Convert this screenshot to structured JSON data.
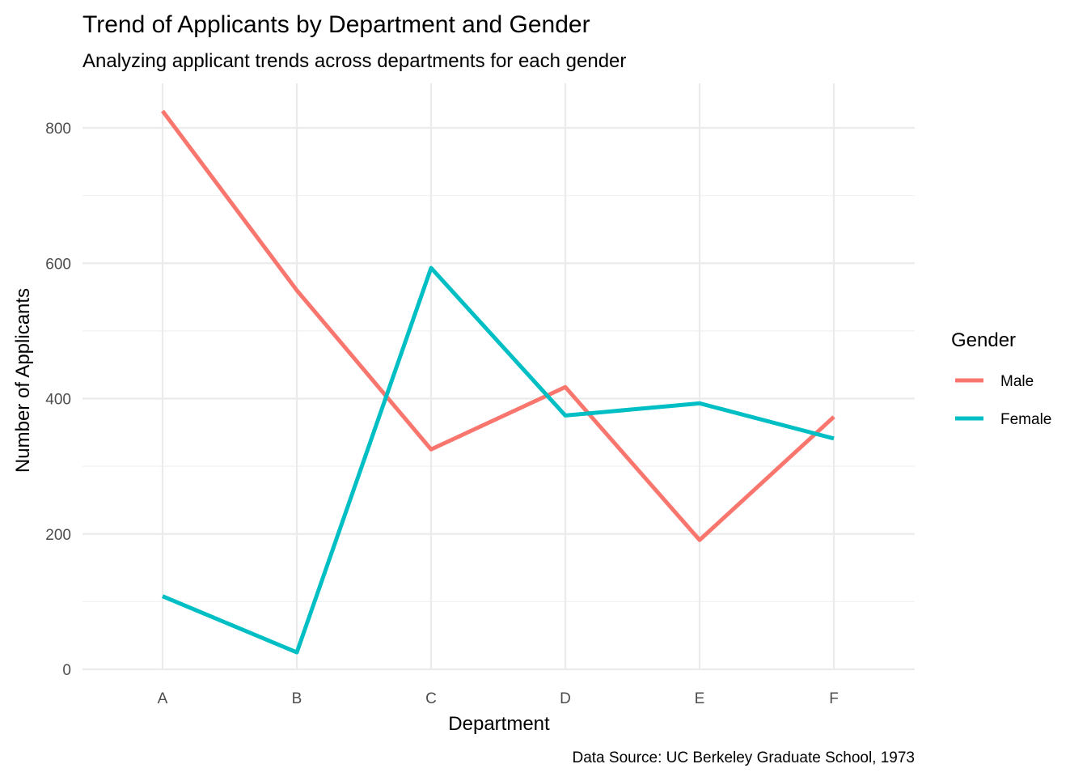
{
  "chart_data": {
    "type": "line",
    "title": "Trend of Applicants by Department and Gender",
    "subtitle": "Analyzing applicant trends across departments for each gender",
    "xlabel": "Department",
    "ylabel": "Number of Applicants",
    "caption": "Data Source: UC Berkeley Graduate School, 1973",
    "categories": [
      "A",
      "B",
      "C",
      "D",
      "E",
      "F"
    ],
    "ylim": [
      0,
      860
    ],
    "yticks": [
      0,
      200,
      400,
      600,
      800
    ],
    "y_tick_labels": [
      "0",
      "200",
      "400",
      "600",
      "800"
    ],
    "grid": true,
    "legend": {
      "title": "Gender",
      "placement": "right"
    },
    "series": [
      {
        "name": "Male",
        "color": "#F8766D",
        "values": [
          825,
          560,
          325,
          417,
          191,
          373
        ]
      },
      {
        "name": "Female",
        "color": "#00BFC4",
        "values": [
          108,
          25,
          593,
          375,
          393,
          341
        ]
      }
    ]
  }
}
